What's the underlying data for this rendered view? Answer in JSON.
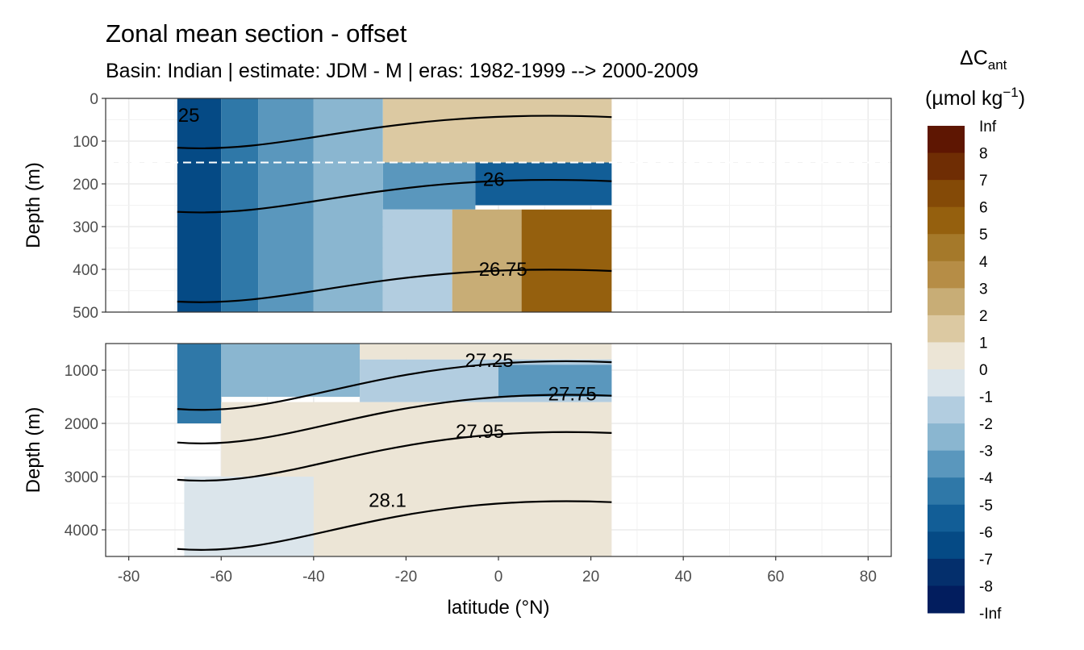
{
  "chart_data": {
    "type": "heatmap",
    "title": "Zonal mean section - offset",
    "subtitle": "Basin: Indian | estimate: JDM - M | eras: 1982-1999 --> 2000-2009",
    "xlabel": "latitude (°N)",
    "ylabel": "Depth (m)",
    "xlim": [
      -85,
      85
    ],
    "x_ticks": [
      -80,
      -60,
      -40,
      -20,
      0,
      20,
      40,
      60,
      80
    ],
    "x_tick_labels": [
      "-80",
      "-60",
      "-40",
      "-20",
      "0",
      "20",
      "40",
      "60",
      "80"
    ],
    "data_lat_range": [
      -69.5,
      24.5
    ],
    "panels": [
      {
        "name": "upper",
        "ylim": [
          500,
          0
        ],
        "y_ticks": [
          0,
          100,
          200,
          300,
          400,
          500
        ],
        "y_tick_labels": [
          "0",
          "100",
          "200",
          "300",
          "400",
          "500"
        ],
        "reference_line_depth": 150,
        "regions": [
          {
            "lat": [
              -70,
              -60
            ],
            "depth": [
              0,
              500
            ],
            "value": -6
          },
          {
            "lat": [
              -60,
              -52
            ],
            "depth": [
              0,
              500
            ],
            "value": -4
          },
          {
            "lat": [
              -52,
              -40
            ],
            "depth": [
              0,
              500
            ],
            "value": -3
          },
          {
            "lat": [
              -40,
              -25
            ],
            "depth": [
              0,
              500
            ],
            "value": -2
          },
          {
            "lat": [
              -25,
              24.5
            ],
            "depth": [
              0,
              150
            ],
            "value": 1.5
          },
          {
            "lat": [
              -25,
              -5
            ],
            "depth": [
              150,
              260
            ],
            "value": -3
          },
          {
            "lat": [
              -5,
              24.5
            ],
            "depth": [
              150,
              250
            ],
            "value": -5
          },
          {
            "lat": [
              -25,
              -10
            ],
            "depth": [
              260,
              500
            ],
            "value": -1.5
          },
          {
            "lat": [
              -10,
              5
            ],
            "depth": [
              260,
              500
            ],
            "value": 2.5
          },
          {
            "lat": [
              5,
              24.5
            ],
            "depth": [
              260,
              500
            ],
            "value": 6
          }
        ],
        "isopycnals": [
          {
            "label": "25",
            "depth_at_label": 40,
            "lat_at_label": -67
          },
          {
            "label": "26",
            "depth_at_label": 190,
            "lat_at_label": -1
          },
          {
            "label": "26.75",
            "depth_at_label": 400,
            "lat_at_label": 1
          }
        ]
      },
      {
        "name": "lower",
        "ylim": [
          4500,
          500
        ],
        "y_ticks": [
          1000,
          2000,
          3000,
          4000
        ],
        "y_tick_labels": [
          "1000",
          "2000",
          "3000",
          "4000"
        ],
        "regions": [
          {
            "lat": [
              -70,
              -60
            ],
            "depth": [
              500,
              2000
            ],
            "value": -4
          },
          {
            "lat": [
              -60,
              -30
            ],
            "depth": [
              500,
              1500
            ],
            "value": -2
          },
          {
            "lat": [
              -30,
              24.5
            ],
            "depth": [
              500,
              800
            ],
            "value": 1
          },
          {
            "lat": [
              -30,
              24.5
            ],
            "depth": [
              800,
              1600
            ],
            "value": -1.5
          },
          {
            "lat": [
              0,
              24.5
            ],
            "depth": [
              900,
              1500
            ],
            "value": -3.5
          },
          {
            "lat": [
              -60,
              24.5
            ],
            "depth": [
              1600,
              4500
            ],
            "value": 0.5
          },
          {
            "lat": [
              -68,
              -40
            ],
            "depth": [
              3000,
              4500
            ],
            "value": -0.5
          }
        ],
        "isopycnals": [
          {
            "label": "27.25",
            "depth_at_label": 820,
            "lat_at_label": -2
          },
          {
            "label": "27.75",
            "depth_at_label": 1450,
            "lat_at_label": 16
          },
          {
            "label": "27.95",
            "depth_at_label": 2150,
            "lat_at_label": -4
          },
          {
            "label": "28.1",
            "depth_at_label": 3450,
            "lat_at_label": -24
          }
        ]
      }
    ],
    "legend": {
      "title": "ΔC",
      "title_subscript": "ant",
      "units_prefix": "(µmol kg",
      "units_superscript": "−1",
      "units_suffix": ")",
      "breaks": [
        "Inf",
        "8",
        "7",
        "6",
        "5",
        "4",
        "3",
        "2",
        "1",
        "0",
        "-1",
        "-2",
        "-3",
        "-4",
        "-5",
        "-6",
        "-7",
        "-8",
        "-Inf"
      ],
      "colors": [
        "#5e1602",
        "#6f2d04",
        "#844a07",
        "#95600e",
        "#a5792a",
        "#b68d46",
        "#c8ad76",
        "#dcc9a2",
        "#ece5d6",
        "#dbe5eb",
        "#b2cde0",
        "#8ab6d0",
        "#5a97bd",
        "#2f78a8",
        "#125e97",
        "#054a85",
        "#042f6c",
        "#021d5e"
      ]
    }
  }
}
